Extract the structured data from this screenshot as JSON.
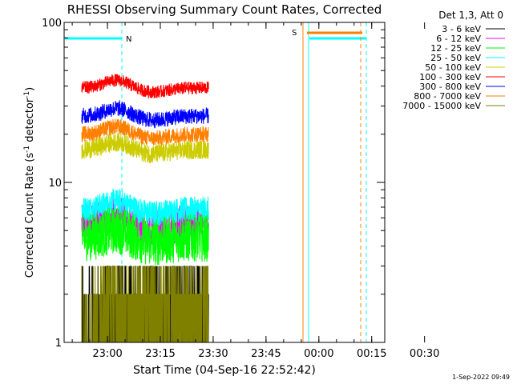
{
  "chart_data": {
    "type": "line",
    "title": "RHESSI Observing Summary Count Rates, Corrected",
    "xlabel": "Start Time (04-Sep-16 22:52:42)",
    "ylabel": "Corrected Count Rate (s⁻¹ detector⁻¹)",
    "ylabel_main": "Corrected Count Rate (s",
    "ylabel_sup1": "-1",
    "ylabel_mid": " detector",
    "ylabel_sup2": "-1",
    "ylabel_end": ")",
    "y_scale": "log",
    "ylim": [
      1,
      100
    ],
    "y_ticks": [
      {
        "value": 1,
        "label": "1"
      },
      {
        "value": 10,
        "label": "10"
      },
      {
        "value": 100,
        "label": "100"
      }
    ],
    "x_minutes": [
      0,
      36
    ],
    "x_range_minutes": [
      -5,
      86
    ],
    "x_ticks": [
      {
        "label": "23:00",
        "minute": 7.3
      },
      {
        "label": "23:15",
        "minute": 22.3
      },
      {
        "label": "23:30",
        "minute": 37.3
      },
      {
        "label": "23:45",
        "minute": 52.3
      },
      {
        "label": "00:00",
        "minute": 67.3
      },
      {
        "label": "00:15",
        "minute": 82.3
      },
      {
        "label": "00:30",
        "minute": 97.3
      }
    ],
    "legend_placement": "right",
    "legend_header": "Det 1,3, Att 0",
    "series": [
      {
        "name": "3 - 6 keV",
        "color": "#000000",
        "level": 1.5,
        "noise": 0.35
      },
      {
        "name": "6 - 12 keV",
        "color": "#ff00ff",
        "level": 5.5,
        "noise": 0.12
      },
      {
        "name": "12 - 25 keV",
        "color": "#00ff00",
        "level": 4.5,
        "noise": 0.15
      },
      {
        "name": "25 - 50 keV",
        "color": "#00ffff",
        "level": 6.8,
        "noise": 0.08
      },
      {
        "name": "50 - 100 keV",
        "color": "#cccc00",
        "level": 16,
        "noise": 0.06
      },
      {
        "name": "100 - 300 keV",
        "color": "#ff0000",
        "level": 39,
        "noise": 0.04
      },
      {
        "name": "300 - 800 keV",
        "color": "#0000ff",
        "level": 26,
        "noise": 0.05
      },
      {
        "name": "800 - 7000 keV",
        "color": "#ff8000",
        "level": 20,
        "noise": 0.05
      },
      {
        "name": "7000 - 15000 keV",
        "color": "#808000",
        "level": 1.5,
        "noise": 0.3
      }
    ],
    "annotations": [
      {
        "text": "N",
        "color": "#00ffff"
      },
      {
        "text": "S",
        "color": "#ff8000"
      }
    ]
  },
  "footer": {
    "timestamp": "1-Sep-2022 09:49"
  }
}
